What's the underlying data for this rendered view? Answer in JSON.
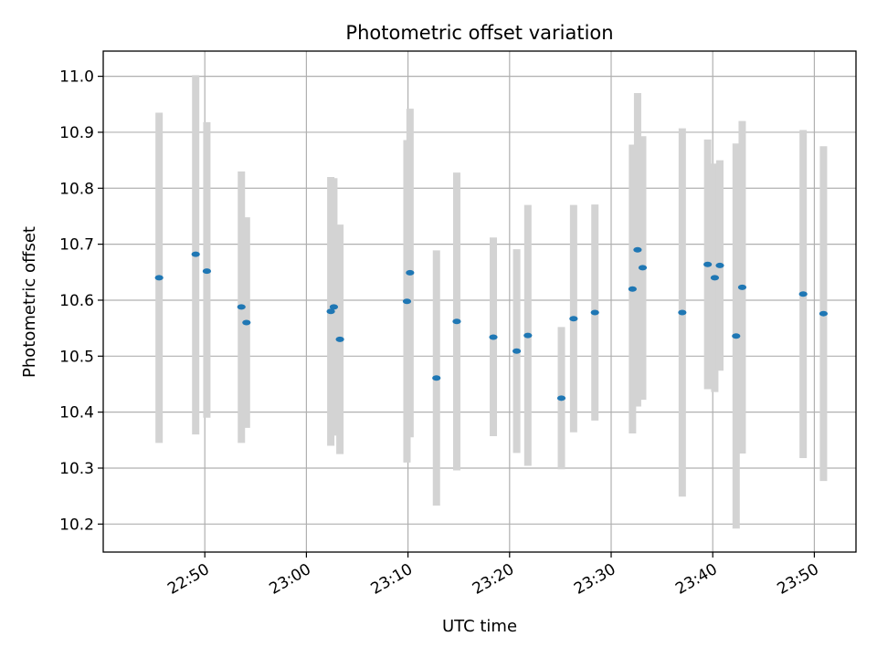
{
  "chart_data": {
    "type": "scatter",
    "title": "Photometric offset variation",
    "xlabel": "UTC time",
    "ylabel": "Photometric offset",
    "x_tick_labels": [
      "22:50",
      "23:00",
      "23:10",
      "23:20",
      "23:30",
      "23:40",
      "23:50"
    ],
    "x_ticks_minutes": [
      50,
      60,
      70,
      80,
      90,
      100,
      110
    ],
    "y_tick_labels": [
      "10.2",
      "10.3",
      "10.4",
      "10.5",
      "10.6",
      "10.7",
      "10.8",
      "10.9",
      "11.0"
    ],
    "y_ticks": [
      10.2,
      10.3,
      10.4,
      10.5,
      10.6,
      10.7,
      10.8,
      10.9,
      11.0
    ],
    "xlim_minutes": [
      40.0,
      114.1
    ],
    "ylim": [
      10.15,
      11.045
    ],
    "grid": true,
    "legend": "none",
    "colors": {
      "marker": "#1f77b4",
      "errorbar": "#d3d3d3",
      "grid": "#b0b0b0"
    },
    "points": [
      {
        "t": 45.5,
        "y": 10.64,
        "lo": 10.345,
        "hi": 10.935
      },
      {
        "t": 49.1,
        "y": 10.682,
        "lo": 10.36,
        "hi": 11.002
      },
      {
        "t": 50.2,
        "y": 10.652,
        "lo": 10.39,
        "hi": 10.918
      },
      {
        "t": 53.6,
        "y": 10.588,
        "lo": 10.345,
        "hi": 10.83
      },
      {
        "t": 54.1,
        "y": 10.56,
        "lo": 10.372,
        "hi": 10.748
      },
      {
        "t": 62.4,
        "y": 10.58,
        "lo": 10.34,
        "hi": 10.82
      },
      {
        "t": 62.7,
        "y": 10.588,
        "lo": 10.358,
        "hi": 10.818
      },
      {
        "t": 63.3,
        "y": 10.53,
        "lo": 10.325,
        "hi": 10.735
      },
      {
        "t": 69.9,
        "y": 10.598,
        "lo": 10.31,
        "hi": 10.886
      },
      {
        "t": 70.2,
        "y": 10.649,
        "lo": 10.355,
        "hi": 10.942
      },
      {
        "t": 72.8,
        "y": 10.461,
        "lo": 10.233,
        "hi": 10.689
      },
      {
        "t": 74.8,
        "y": 10.562,
        "lo": 10.296,
        "hi": 10.828
      },
      {
        "t": 78.4,
        "y": 10.534,
        "lo": 10.357,
        "hi": 10.712
      },
      {
        "t": 80.7,
        "y": 10.509,
        "lo": 10.327,
        "hi": 10.691
      },
      {
        "t": 81.8,
        "y": 10.537,
        "lo": 10.304,
        "hi": 10.77
      },
      {
        "t": 85.1,
        "y": 10.425,
        "lo": 10.298,
        "hi": 10.552
      },
      {
        "t": 86.3,
        "y": 10.567,
        "lo": 10.364,
        "hi": 10.77
      },
      {
        "t": 88.4,
        "y": 10.578,
        "lo": 10.385,
        "hi": 10.771
      },
      {
        "t": 92.1,
        "y": 10.62,
        "lo": 10.362,
        "hi": 10.878
      },
      {
        "t": 92.6,
        "y": 10.69,
        "lo": 10.41,
        "hi": 10.97
      },
      {
        "t": 93.1,
        "y": 10.658,
        "lo": 10.422,
        "hi": 10.893
      },
      {
        "t": 97.0,
        "y": 10.578,
        "lo": 10.249,
        "hi": 10.907
      },
      {
        "t": 99.5,
        "y": 10.664,
        "lo": 10.441,
        "hi": 10.887
      },
      {
        "t": 100.2,
        "y": 10.64,
        "lo": 10.436,
        "hi": 10.844
      },
      {
        "t": 100.7,
        "y": 10.662,
        "lo": 10.474,
        "hi": 10.85
      },
      {
        "t": 102.3,
        "y": 10.536,
        "lo": 10.192,
        "hi": 10.88
      },
      {
        "t": 102.9,
        "y": 10.623,
        "lo": 10.326,
        "hi": 10.92
      },
      {
        "t": 108.9,
        "y": 10.611,
        "lo": 10.318,
        "hi": 10.904
      },
      {
        "t": 110.9,
        "y": 10.576,
        "lo": 10.277,
        "hi": 10.875
      }
    ]
  }
}
